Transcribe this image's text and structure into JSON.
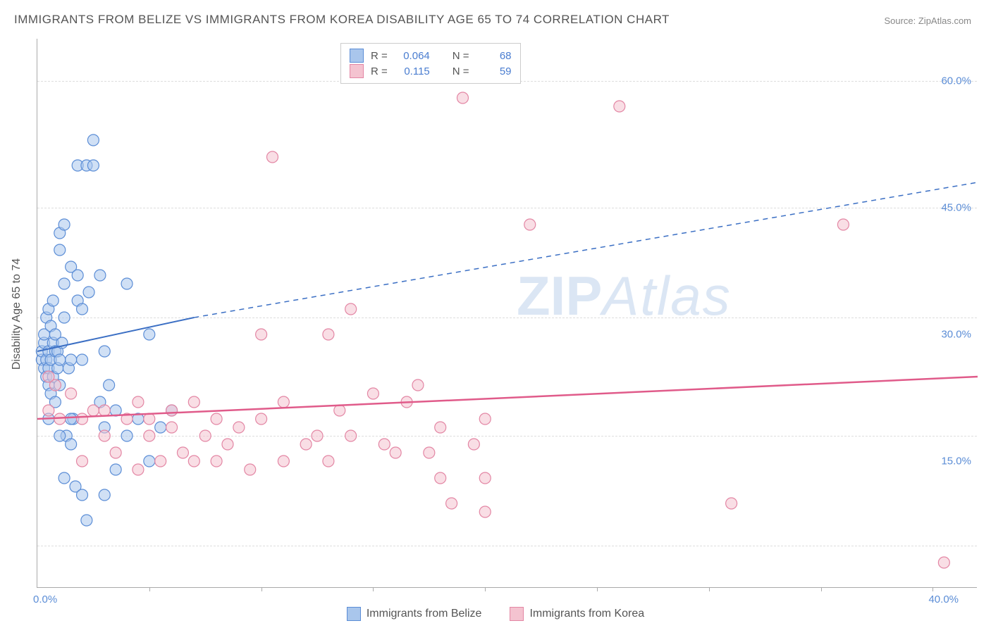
{
  "title": "IMMIGRANTS FROM BELIZE VS IMMIGRANTS FROM KOREA DISABILITY AGE 65 TO 74 CORRELATION CHART",
  "source": "Source: ZipAtlas.com",
  "ylabel": "Disability Age 65 to 74",
  "watermark_a": "ZIP",
  "watermark_b": "Atlas",
  "chart": {
    "type": "scatter-with-regression",
    "xlim": [
      0,
      42
    ],
    "ylim": [
      0,
      65
    ],
    "xtick_labels": [
      {
        "pos": 0,
        "label": "0.0%"
      },
      {
        "pos": 40,
        "label": "40.0%"
      }
    ],
    "xtick_marks": [
      5,
      10,
      15,
      20,
      25,
      30,
      35,
      40
    ],
    "ytick_labels": [
      {
        "pos": 15,
        "label": "15.0%"
      },
      {
        "pos": 30,
        "label": "30.0%"
      },
      {
        "pos": 45,
        "label": "45.0%"
      },
      {
        "pos": 60,
        "label": "60.0%"
      }
    ],
    "grid_y": [
      5,
      18,
      32,
      45,
      60
    ],
    "grid_color": "#dddddd",
    "background_color": "#ffffff",
    "marker_radius": 8,
    "marker_opacity": 0.55,
    "series": [
      {
        "name": "Immigrants from Belize",
        "color_fill": "#a9c6ec",
        "color_stroke": "#5b8dd6",
        "r": "0.064",
        "n": "68",
        "regression": {
          "x1": 0,
          "y1": 28,
          "x_solid_end": 7,
          "y_solid_end": 32,
          "x2": 42,
          "y2": 48,
          "color": "#3b6fc4",
          "width": 2
        },
        "points": [
          [
            0.2,
            27
          ],
          [
            0.2,
            28
          ],
          [
            0.3,
            26
          ],
          [
            0.3,
            29
          ],
          [
            0.3,
            30
          ],
          [
            0.4,
            25
          ],
          [
            0.4,
            27
          ],
          [
            0.4,
            32
          ],
          [
            0.5,
            24
          ],
          [
            0.5,
            26
          ],
          [
            0.5,
            28
          ],
          [
            0.5,
            33
          ],
          [
            0.6,
            23
          ],
          [
            0.6,
            27
          ],
          [
            0.6,
            31
          ],
          [
            0.7,
            25
          ],
          [
            0.7,
            29
          ],
          [
            0.7,
            34
          ],
          [
            0.8,
            22
          ],
          [
            0.8,
            28
          ],
          [
            0.8,
            30
          ],
          [
            0.9,
            26
          ],
          [
            0.9,
            28
          ],
          [
            1.0,
            24
          ],
          [
            1.0,
            27
          ],
          [
            1.0,
            42
          ],
          [
            1.0,
            40
          ],
          [
            1.1,
            29
          ],
          [
            1.2,
            13
          ],
          [
            1.2,
            32
          ],
          [
            1.2,
            36
          ],
          [
            1.2,
            43
          ],
          [
            1.3,
            18
          ],
          [
            1.4,
            26
          ],
          [
            1.5,
            17
          ],
          [
            1.5,
            27
          ],
          [
            1.5,
            38
          ],
          [
            1.6,
            20
          ],
          [
            1.7,
            12
          ],
          [
            1.8,
            34
          ],
          [
            1.8,
            37
          ],
          [
            1.8,
            50
          ],
          [
            2.0,
            27
          ],
          [
            2.0,
            11
          ],
          [
            2.2,
            8
          ],
          [
            2.2,
            50
          ],
          [
            2.3,
            35
          ],
          [
            2.5,
            53
          ],
          [
            2.5,
            50
          ],
          [
            2.8,
            22
          ],
          [
            2.8,
            37
          ],
          [
            3.0,
            11
          ],
          [
            3.0,
            19
          ],
          [
            3.2,
            24
          ],
          [
            3.5,
            14
          ],
          [
            3.5,
            21
          ],
          [
            4.0,
            36
          ],
          [
            4.0,
            18
          ],
          [
            4.5,
            20
          ],
          [
            5.0,
            15
          ],
          [
            5.0,
            30
          ],
          [
            5.5,
            19
          ],
          [
            6.0,
            21
          ],
          [
            2.0,
            33
          ],
          [
            1.5,
            20
          ],
          [
            3.0,
            28
          ],
          [
            0.5,
            20
          ],
          [
            1.0,
            18
          ]
        ]
      },
      {
        "name": "Immigrants from Korea",
        "color_fill": "#f4c3d0",
        "color_stroke": "#e386a4",
        "r": "0.115",
        "n": "59",
        "regression": {
          "x1": 0,
          "y1": 20,
          "x_solid_end": 42,
          "y_solid_end": 25,
          "x2": 42,
          "y2": 25,
          "color": "#e05b8a",
          "width": 2.5
        },
        "points": [
          [
            0.5,
            21
          ],
          [
            0.8,
            24
          ],
          [
            1.0,
            20
          ],
          [
            1.5,
            23
          ],
          [
            2.0,
            15
          ],
          [
            2.0,
            20
          ],
          [
            2.5,
            21
          ],
          [
            3.0,
            18
          ],
          [
            3.0,
            21
          ],
          [
            3.5,
            16
          ],
          [
            4.0,
            20
          ],
          [
            4.5,
            14
          ],
          [
            4.5,
            22
          ],
          [
            5.0,
            18
          ],
          [
            5.0,
            20
          ],
          [
            5.5,
            15
          ],
          [
            6.0,
            19
          ],
          [
            6.0,
            21
          ],
          [
            6.5,
            16
          ],
          [
            7.0,
            15
          ],
          [
            7.0,
            22
          ],
          [
            7.5,
            18
          ],
          [
            8.0,
            20
          ],
          [
            8.0,
            15
          ],
          [
            8.5,
            17
          ],
          [
            9.0,
            19
          ],
          [
            9.5,
            14
          ],
          [
            10,
            30
          ],
          [
            10,
            20
          ],
          [
            10.5,
            51
          ],
          [
            11,
            15
          ],
          [
            11,
            22
          ],
          [
            12,
            17
          ],
          [
            12.5,
            18
          ],
          [
            13,
            15
          ],
          [
            13.5,
            21
          ],
          [
            14,
            33
          ],
          [
            14,
            18
          ],
          [
            15,
            23
          ],
          [
            15.5,
            17
          ],
          [
            16,
            16
          ],
          [
            16.5,
            22
          ],
          [
            17,
            24
          ],
          [
            17.5,
            16
          ],
          [
            18,
            19
          ],
          [
            18,
            13
          ],
          [
            18.5,
            10
          ],
          [
            19,
            58
          ],
          [
            19.5,
            17
          ],
          [
            20,
            9
          ],
          [
            20,
            13
          ],
          [
            20,
            20
          ],
          [
            22,
            43
          ],
          [
            26,
            57
          ],
          [
            31,
            10
          ],
          [
            36,
            43
          ],
          [
            40.5,
            3
          ],
          [
            0.5,
            25
          ],
          [
            13,
            30
          ]
        ]
      }
    ],
    "legend_bottom": [
      {
        "label": "Immigrants from Belize",
        "fill": "#a9c6ec",
        "stroke": "#5b8dd6"
      },
      {
        "label": "Immigrants from Korea",
        "fill": "#f4c3d0",
        "stroke": "#e386a4"
      }
    ]
  }
}
